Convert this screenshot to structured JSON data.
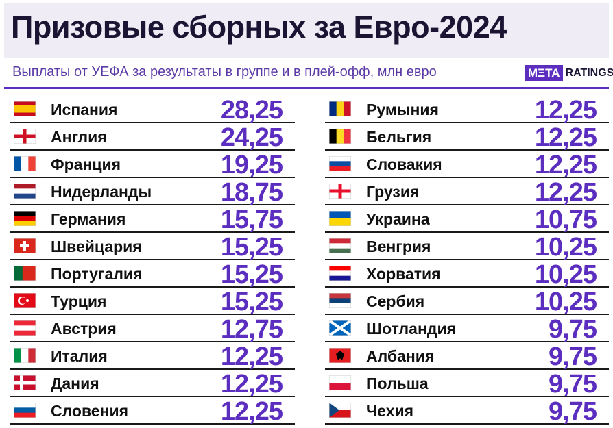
{
  "header": {
    "title": "Призовые сборных за Евро-2024",
    "subtitle": "Выплаты от УЕФА за результаты в группе и в плей-офф, млн евро",
    "logo": {
      "brand": "MΞTA",
      "suffix": "RATINGS"
    }
  },
  "table": {
    "columns": [
      [
        [
          "Испания",
          "28,25"
        ],
        [
          "Англия",
          "24,25"
        ],
        [
          "Франция",
          "19,25"
        ],
        [
          "Нидерланды",
          "18,75"
        ],
        [
          "Германия",
          "15,75"
        ],
        [
          "Швейцария",
          "15,25"
        ],
        [
          "Португалия",
          "15,25"
        ],
        [
          "Турция",
          "15,25"
        ],
        [
          "Австрия",
          "12,75"
        ],
        [
          "Италия",
          "12,25"
        ],
        [
          "Дания",
          "12,25"
        ],
        [
          "Словения",
          "12,25"
        ]
      ],
      [
        [
          "Румыния",
          "12,25"
        ],
        [
          "Бельгия",
          "12,25"
        ],
        [
          "Словакия",
          "12,25"
        ],
        [
          "Грузия",
          "12,25"
        ],
        [
          "Украина",
          "10,75"
        ],
        [
          "Венгрия",
          "10,25"
        ],
        [
          "Хорватия",
          "10,25"
        ],
        [
          "Сербия",
          "10,25"
        ],
        [
          "Шотландия",
          "9,75"
        ],
        [
          "Албания",
          "9,75"
        ],
        [
          "Польша",
          "9,75"
        ],
        [
          "Чехия",
          "9,75"
        ]
      ]
    ]
  }
}
